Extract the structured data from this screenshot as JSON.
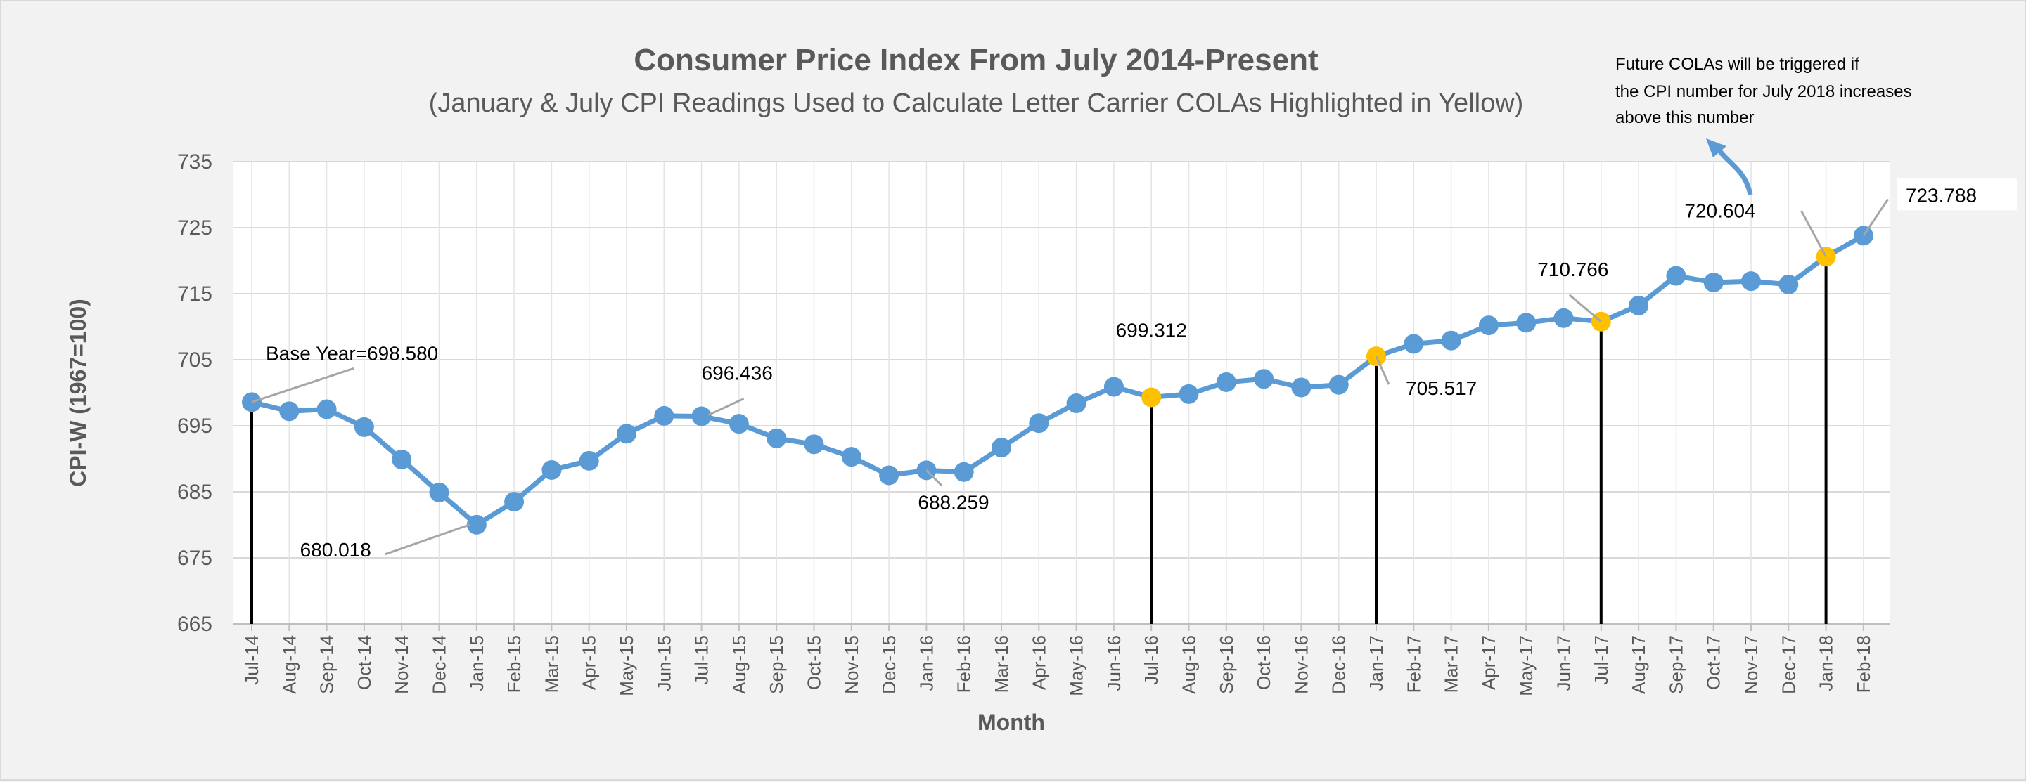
{
  "chart_data": {
    "type": "line",
    "title": "Consumer Price Index From July 2014-Present",
    "subtitle": "(January & July CPI Readings Used to Calculate Letter Carrier COLAs Highlighted in Yellow)",
    "xlabel": "Month",
    "ylabel": "CPI-W (1967=100)",
    "ylim": [
      665,
      735
    ],
    "yticks": [
      665,
      675,
      685,
      695,
      705,
      715,
      725,
      735
    ],
    "grid": true,
    "categories": [
      "Jul-14",
      "Aug-14",
      "Sep-14",
      "Oct-14",
      "Nov-14",
      "Dec-14",
      "Jan-15",
      "Feb-15",
      "Mar-15",
      "Apr-15",
      "May-15",
      "Jun-15",
      "Jul-15",
      "Aug-15",
      "Sep-15",
      "Oct-15",
      "Nov-15",
      "Dec-15",
      "Jan-16",
      "Feb-16",
      "Mar-16",
      "Apr-16",
      "May-16",
      "Jun-16",
      "Jul-16",
      "Aug-16",
      "Sep-16",
      "Oct-16",
      "Nov-16",
      "Dec-16",
      "Jan-17",
      "Feb-17",
      "Mar-17",
      "Apr-17",
      "May-17",
      "Jun-17",
      "Jul-17",
      "Aug-17",
      "Sep-17",
      "Oct-17",
      "Nov-17",
      "Dec-17",
      "Jan-18",
      "Feb-18"
    ],
    "values": [
      698.58,
      697.2,
      697.5,
      694.8,
      689.9,
      684.9,
      680.018,
      683.5,
      688.3,
      689.7,
      693.8,
      696.5,
      696.436,
      695.3,
      693.1,
      692.2,
      690.3,
      687.5,
      688.259,
      688.0,
      691.7,
      695.4,
      698.4,
      700.9,
      699.312,
      699.8,
      701.6,
      702.1,
      700.8,
      701.2,
      705.517,
      707.4,
      707.9,
      710.2,
      710.6,
      711.3,
      710.766,
      713.2,
      717.7,
      716.7,
      716.9,
      716.4,
      720.604,
      723.788
    ],
    "highlight_color": "#ffc000",
    "line_color": "#5b9bd5",
    "highlight_indices": [
      24,
      30,
      36,
      42
    ],
    "labels": [
      {
        "index": 0,
        "text": "Base Year=698.580"
      },
      {
        "index": 6,
        "text": "680.018"
      },
      {
        "index": 12,
        "text": "696.436"
      },
      {
        "index": 18,
        "text": "688.259"
      },
      {
        "index": 24,
        "text": "699.312"
      },
      {
        "index": 30,
        "text": "705.517"
      },
      {
        "index": 36,
        "text": "710.766"
      },
      {
        "index": 42,
        "text": "720.604"
      },
      {
        "index": 43,
        "text": "723.788"
      }
    ],
    "drop_lines": [
      0,
      24,
      30,
      36,
      42
    ],
    "annotation": [
      "Future COLAs will be triggered if",
      "the CPI number for July 2018 increases",
      "above this number"
    ]
  }
}
